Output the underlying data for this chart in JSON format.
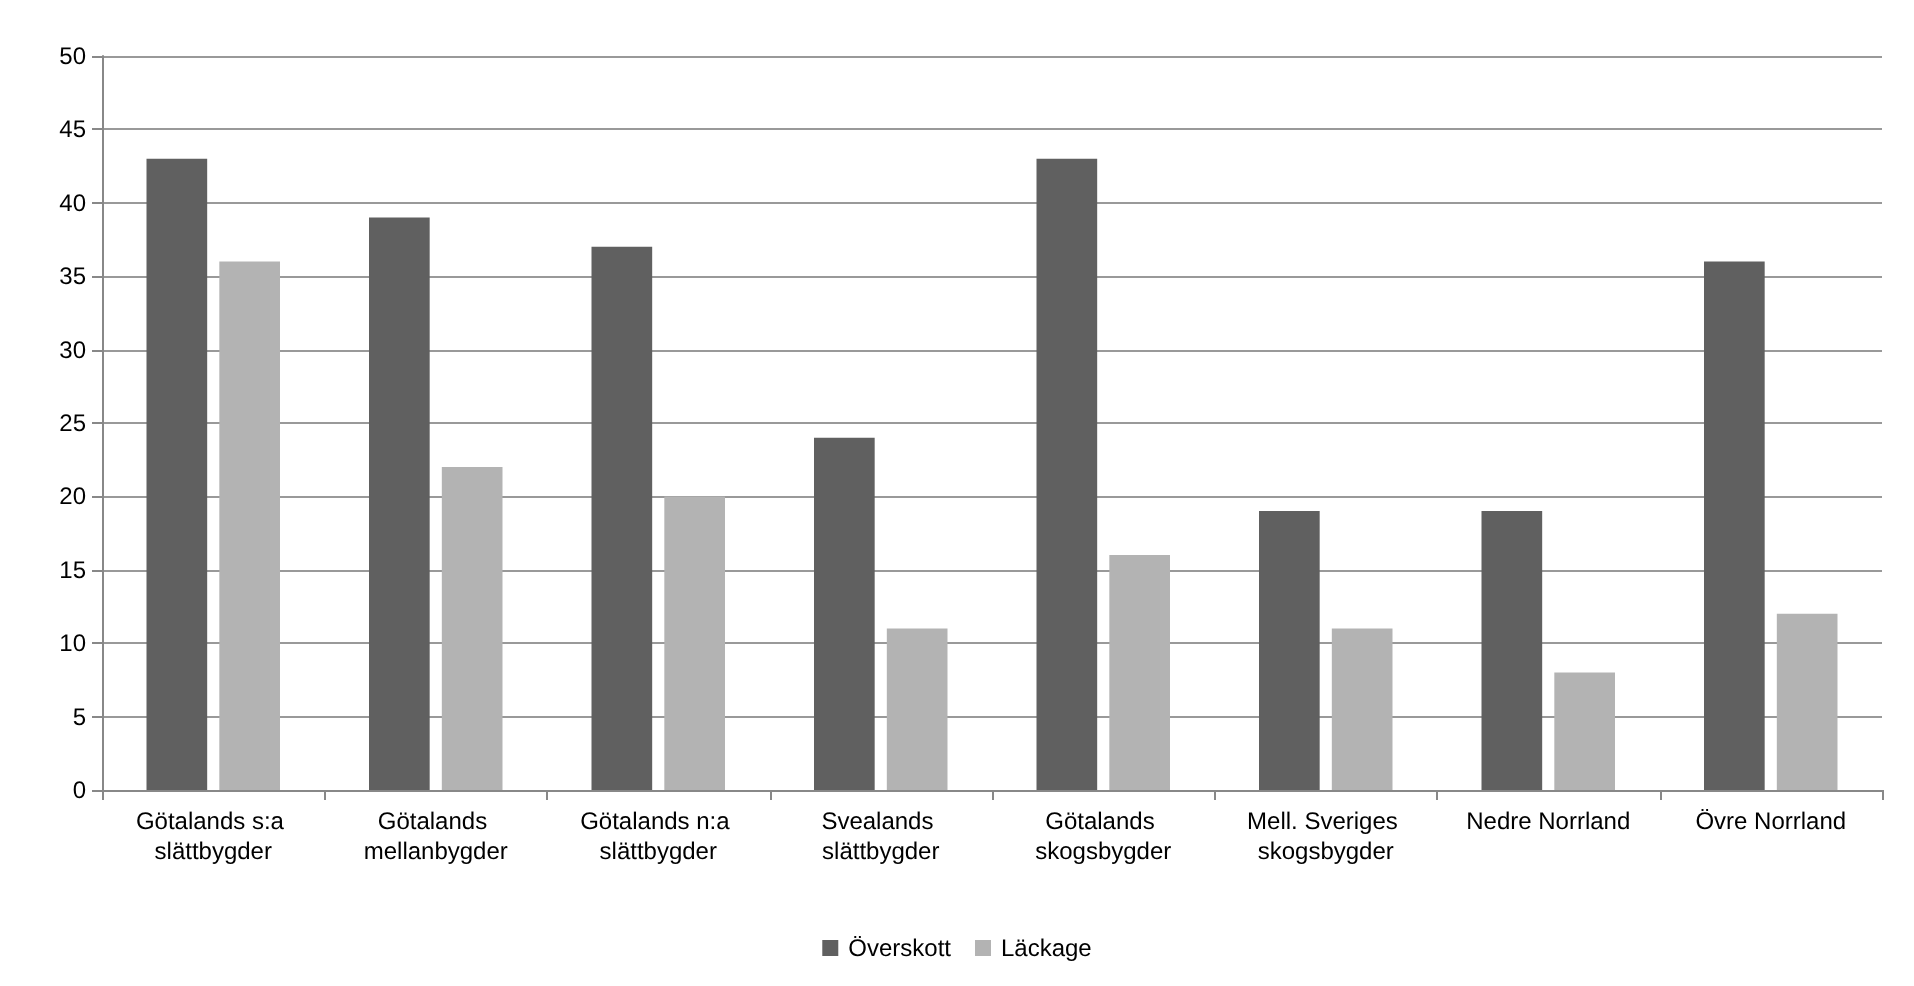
{
  "chart_data": {
    "type": "bar",
    "categories": [
      "Götalands s:a slättbygder",
      "Götalands mellanbygder",
      "Götalands n:a slättbygder",
      "Svealands slättbygder",
      "Götalands skogsbygder",
      "Mell. Sveriges skogsbygder",
      "Nedre Norrland",
      "Övre Norrland"
    ],
    "series": [
      {
        "name": "Överskott",
        "color": "#606060",
        "values": [
          43,
          39,
          37,
          24,
          43,
          19,
          19,
          36
        ]
      },
      {
        "name": "Läckage",
        "color": "#b3b3b3",
        "values": [
          36,
          22,
          20,
          11,
          16,
          11,
          8,
          12
        ]
      }
    ],
    "ylim": [
      0,
      50
    ],
    "yticks": [
      0,
      5,
      10,
      15,
      20,
      25,
      30,
      35,
      40,
      45,
      50
    ],
    "grid": "y",
    "legend": "bottom"
  }
}
